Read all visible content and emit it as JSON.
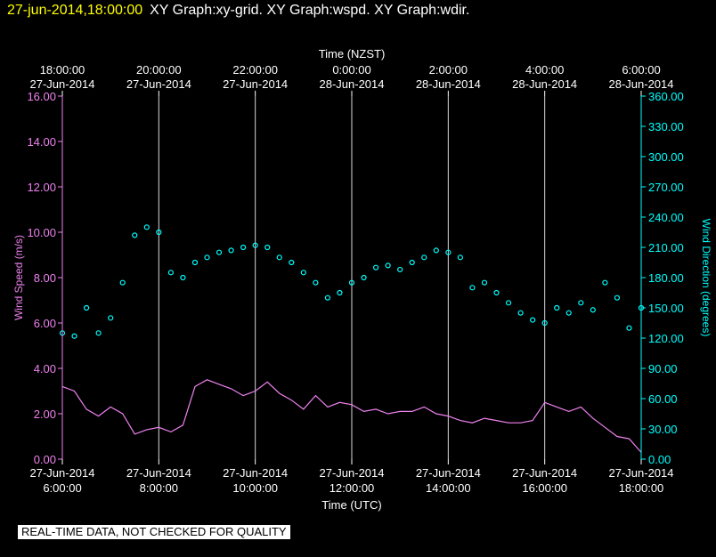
{
  "header": {
    "timestamp": "27-jun-2014,18:00:00",
    "titles": "XY Graph:xy-grid.  XY Graph:wspd.  XY Graph:wdir."
  },
  "footer": {
    "disclaimer": "REAL-TIME DATA, NOT CHECKED FOR QUALITY"
  },
  "colors": {
    "wind_speed": "#ee82ee",
    "wind_direction": "#00ffff",
    "background": "#000000",
    "text": "#ffffff",
    "grid": "#ffffff",
    "timestamp": "#ffff00"
  },
  "chart_data": {
    "type": "line",
    "top_axis_label": "Time (NZST)",
    "bottom_axis_label": "Time (UTC)",
    "left_axis_label": "Wind Speed (m/s)",
    "right_axis_label": "Wind Direction (degrees)",
    "top_ticks": [
      [
        "18:00:00",
        "27-Jun-2014"
      ],
      [
        "20:00:00",
        "27-Jun-2014"
      ],
      [
        "22:00:00",
        "27-Jun-2014"
      ],
      [
        "0:00:00",
        "28-Jun-2014"
      ],
      [
        "2:00:00",
        "28-Jun-2014"
      ],
      [
        "4:00:00",
        "28-Jun-2014"
      ],
      [
        "6:00:00",
        "28-Jun-2014"
      ]
    ],
    "bottom_ticks": [
      [
        "27-Jun-2014",
        "6:00:00"
      ],
      [
        "27-Jun-2014",
        "8:00:00"
      ],
      [
        "27-Jun-2014",
        "10:00:00"
      ],
      [
        "27-Jun-2014",
        "12:00:00"
      ],
      [
        "27-Jun-2014",
        "14:00:00"
      ],
      [
        "27-Jun-2014",
        "16:00:00"
      ],
      [
        "27-Jun-2014",
        "18:00:00"
      ]
    ],
    "x_range_utc_hours": [
      6,
      18
    ],
    "left_ticks": [
      "0.00",
      "2.00",
      "4.00",
      "6.00",
      "8.00",
      "10.00",
      "12.00",
      "14.00",
      "16.00"
    ],
    "left_range": [
      0,
      16
    ],
    "right_ticks": [
      "0.00",
      "30.00",
      "60.00",
      "90.00",
      "120.00",
      "150.00",
      "180.00",
      "210.00",
      "240.00",
      "270.00",
      "300.00",
      "330.00",
      "360.00"
    ],
    "right_range": [
      0,
      360
    ],
    "grid": "vertical lines at 2-hour intervals",
    "series": [
      {
        "name": "wspd",
        "style": "line",
        "axis": "left",
        "x_hours_utc": [
          6.0,
          6.25,
          6.5,
          6.75,
          7.0,
          7.25,
          7.5,
          7.75,
          8.0,
          8.25,
          8.5,
          8.75,
          9.0,
          9.25,
          9.5,
          9.75,
          10.0,
          10.25,
          10.5,
          10.75,
          11.0,
          11.25,
          11.5,
          11.75,
          12.0,
          12.25,
          12.5,
          12.75,
          13.0,
          13.25,
          13.5,
          13.75,
          14.0,
          14.25,
          14.5,
          14.75,
          15.0,
          15.25,
          15.5,
          15.75,
          16.0,
          16.25,
          16.5,
          16.75,
          17.0,
          17.25,
          17.5,
          17.75,
          18.0
        ],
        "values": [
          3.2,
          3.0,
          2.2,
          1.9,
          2.3,
          2.0,
          1.1,
          1.3,
          1.4,
          1.2,
          1.5,
          3.2,
          3.5,
          3.3,
          3.1,
          2.8,
          3.0,
          3.4,
          2.9,
          2.6,
          2.2,
          2.8,
          2.3,
          2.5,
          2.4,
          2.1,
          2.2,
          2.0,
          2.1,
          2.1,
          2.3,
          2.0,
          1.9,
          1.7,
          1.6,
          1.8,
          1.7,
          1.6,
          1.6,
          1.7,
          2.5,
          2.3,
          2.1,
          2.3,
          1.8,
          1.4,
          1.0,
          0.9,
          0.3
        ]
      },
      {
        "name": "wdir",
        "style": "scatter",
        "axis": "right",
        "x_hours_utc": [
          6.0,
          6.25,
          6.5,
          6.75,
          7.0,
          7.25,
          7.5,
          7.75,
          8.0,
          8.25,
          8.5,
          8.75,
          9.0,
          9.25,
          9.5,
          9.75,
          10.0,
          10.25,
          10.5,
          10.75,
          11.0,
          11.25,
          11.5,
          11.75,
          12.0,
          12.25,
          12.5,
          12.75,
          13.0,
          13.25,
          13.5,
          13.75,
          14.0,
          14.25,
          14.5,
          14.75,
          15.0,
          15.25,
          15.5,
          15.75,
          16.0,
          16.25,
          16.5,
          16.75,
          17.0,
          17.25,
          17.5,
          17.75,
          18.0
        ],
        "values": [
          125,
          122,
          150,
          125,
          140,
          175,
          222,
          230,
          225,
          185,
          180,
          195,
          200,
          205,
          207,
          210,
          212,
          210,
          200,
          195,
          185,
          175,
          160,
          165,
          175,
          180,
          190,
          192,
          188,
          195,
          200,
          207,
          205,
          200,
          170,
          175,
          165,
          155,
          145,
          138,
          135,
          150,
          145,
          155,
          148,
          175,
          160,
          130,
          150
        ]
      }
    ]
  }
}
